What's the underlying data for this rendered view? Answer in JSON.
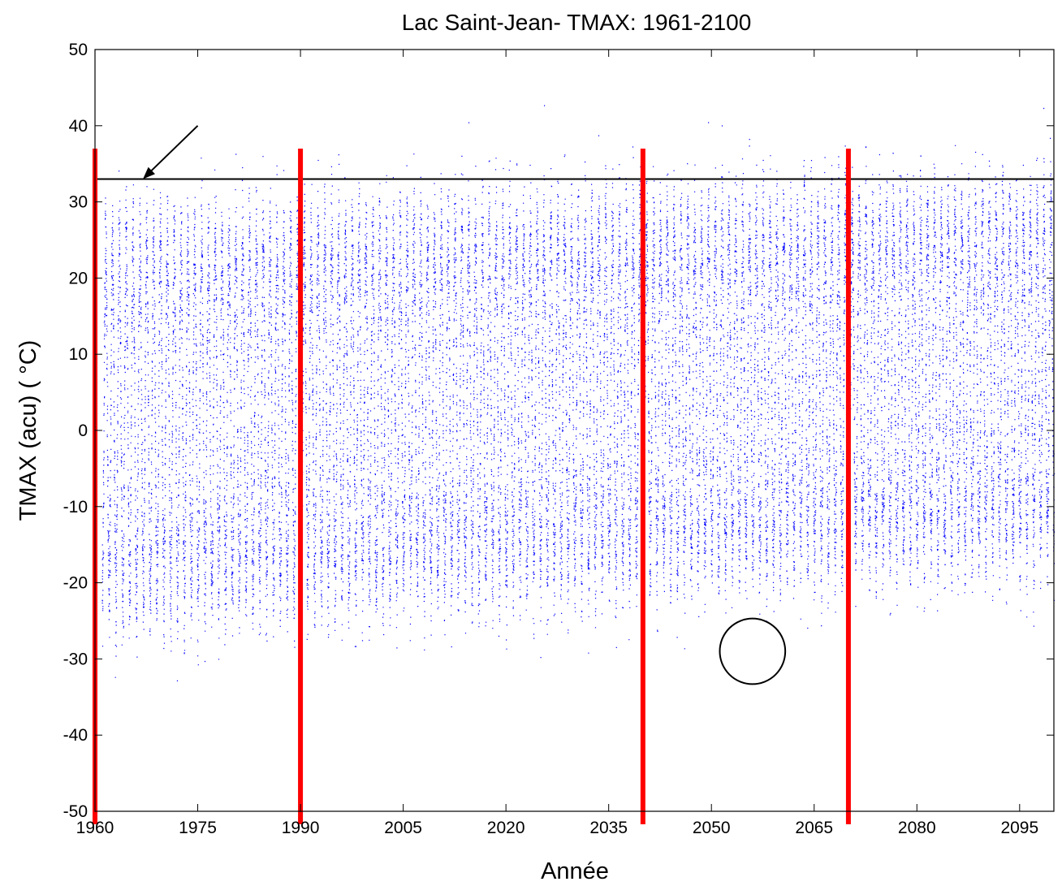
{
  "chart_data": {
    "type": "scatter",
    "title": "Lac Saint-Jean- TMAX: 1961-2100",
    "xlabel": "Année",
    "ylabel": "TMAX (acu) ( °C)",
    "xlim": [
      1960,
      2100
    ],
    "ylim": [
      -50,
      50
    ],
    "xticks": [
      1960,
      1975,
      1990,
      2005,
      2020,
      2035,
      2050,
      2065,
      2080,
      2095
    ],
    "yticks": [
      -50,
      -40,
      -30,
      -20,
      -10,
      0,
      10,
      20,
      30,
      40,
      50
    ],
    "grid": false,
    "series": [
      {
        "marker_color": "#0000ff",
        "x_range": [
          1961,
          2100
        ],
        "description_values": {
          "seasonal_max_early": 27,
          "seasonal_min_early": -24,
          "seasonal_max_late": 31,
          "seasonal_min_late": -16
        }
      }
    ],
    "annotations": {
      "threshold_line": {
        "y": 33,
        "color": "#000000"
      },
      "red_vertical_lines": {
        "x": [
          1960,
          1990,
          2040,
          2070
        ],
        "y_top": 37,
        "color": "#ff0000"
      },
      "arrow": {
        "from": [
          1975,
          40
        ],
        "to": [
          1967,
          33
        ]
      },
      "circle": {
        "center": [
          2056,
          -29
        ],
        "radius_y": 4.3
      }
    }
  }
}
